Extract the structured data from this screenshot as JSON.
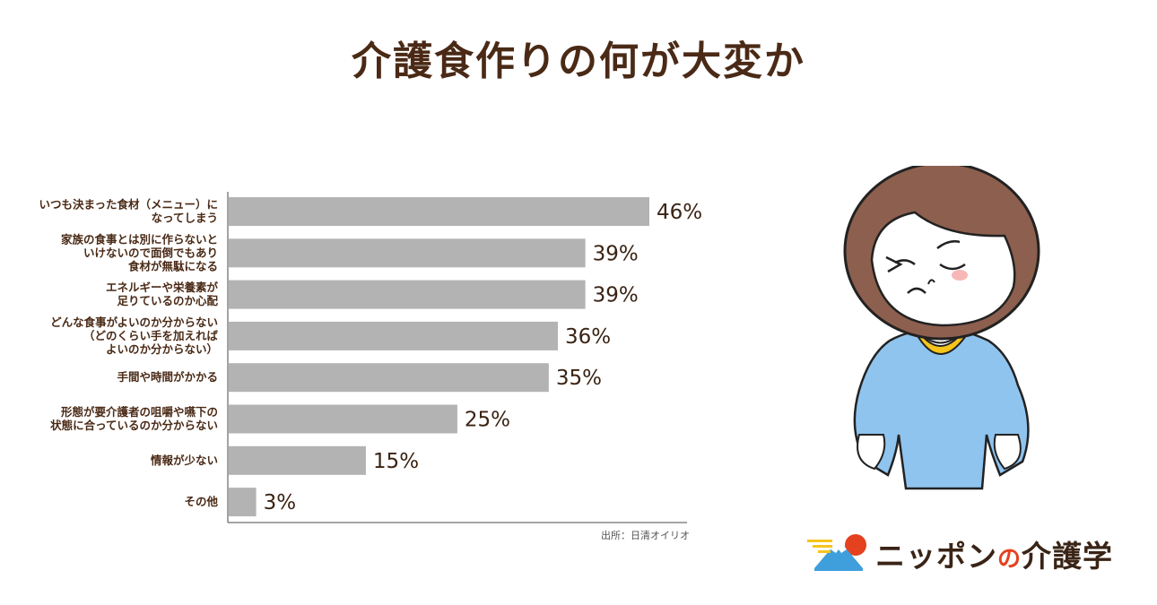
{
  "title": "介護食作りの何が大変か",
  "source": "出所：日清オイリオ",
  "logo": {
    "name": "ニッポン",
    "particle": "の",
    "suffix": "介護学"
  },
  "colors": {
    "bar": "#b3b3b3",
    "title": "#4a2a16",
    "axis": "#4a4a4a"
  },
  "chart_data": {
    "type": "bar",
    "orientation": "horizontal",
    "unit": "%",
    "categories": [
      [
        "いつも決まった食材（メニュー）に",
        "なってしまう"
      ],
      [
        "家族の食事とは別に作らないと",
        "いけないので面倒でもあり",
        "食材が無駄になる"
      ],
      [
        "エネルギーや栄養素が",
        "足りているのか心配"
      ],
      [
        "どんな食事がよいのか分からない",
        "（どのくらい手を加えれば",
        "よいのか分からない）"
      ],
      [
        "手間や時間がかかる"
      ],
      [
        "形態が要介護者の咀嚼や嚥下の",
        "状態に合っているのか分からない"
      ],
      [
        "情報が少ない"
      ],
      [
        "その他"
      ]
    ],
    "values": [
      46,
      39,
      39,
      36,
      35,
      25,
      15,
      3
    ],
    "value_labels": [
      "46%",
      "39%",
      "39%",
      "36%",
      "35%",
      "25%",
      "15%",
      "3%"
    ],
    "xlim": [
      0,
      46
    ],
    "grid": false,
    "legend": "none"
  }
}
